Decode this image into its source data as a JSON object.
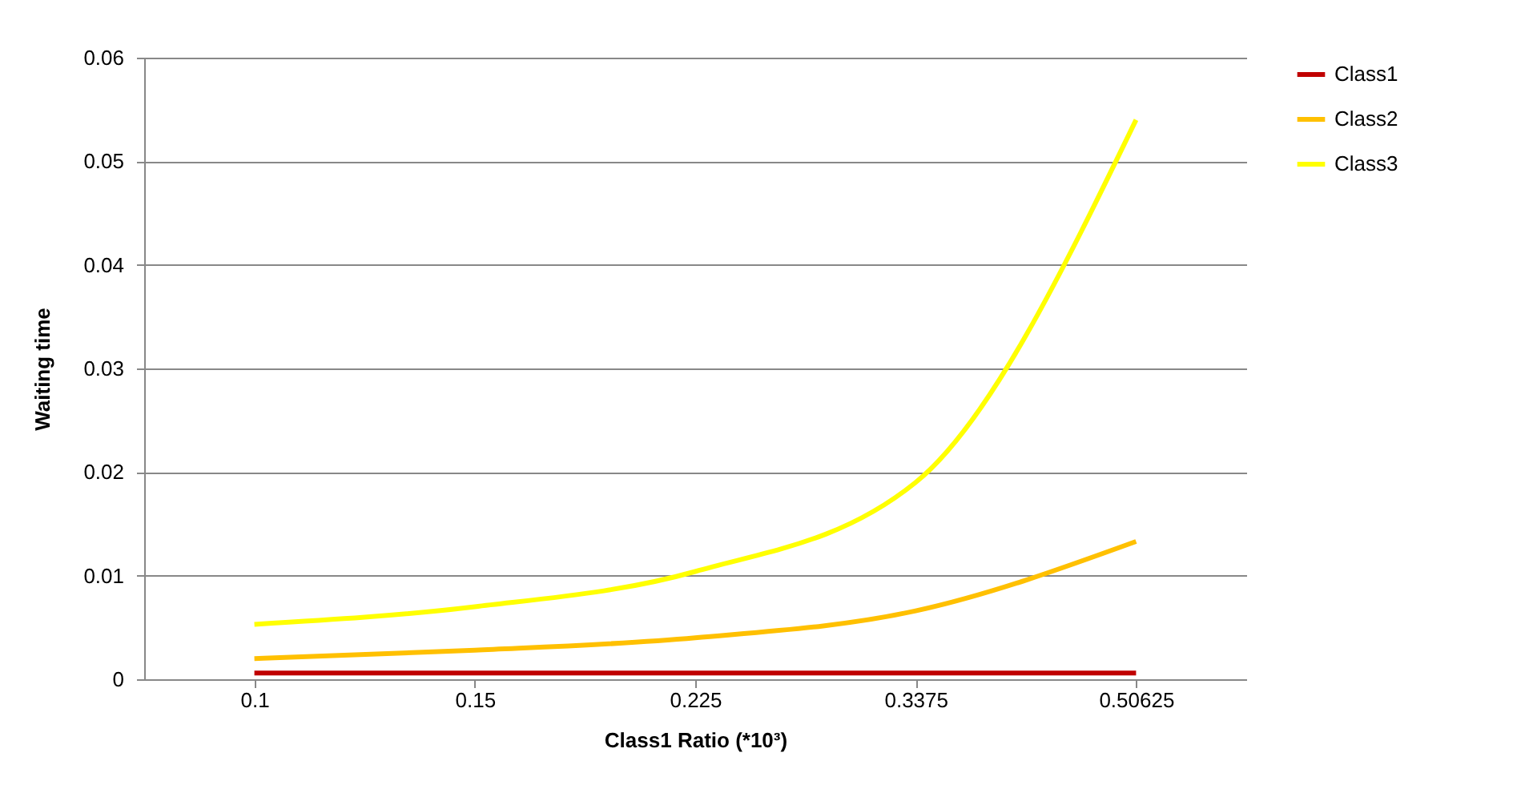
{
  "chart_data": {
    "type": "line",
    "xlabel": "Class1 Ratio (*10³)",
    "ylabel": "Waiting time",
    "categories": [
      "0.1",
      "0.15",
      "0.225",
      "0.3375",
      "0.50625"
    ],
    "series": [
      {
        "name": "Class1",
        "color": "#c00000",
        "values": [
          0.0006,
          0.0006,
          0.0006,
          0.0006,
          0.0006
        ]
      },
      {
        "name": "Class2",
        "color": "#ffc000",
        "values": [
          0.002,
          0.0028,
          0.004,
          0.0066,
          0.0133
        ]
      },
      {
        "name": "Class3",
        "color": "#ffff00",
        "values": [
          0.0053,
          0.007,
          0.0104,
          0.019,
          0.054
        ]
      }
    ],
    "ylim": [
      0,
      0.06
    ],
    "yticks": [
      0,
      0.01,
      0.02,
      0.03,
      0.04,
      0.05,
      0.06
    ],
    "grid": "y",
    "legend": "right",
    "marker": "none",
    "line_style": "solid"
  }
}
